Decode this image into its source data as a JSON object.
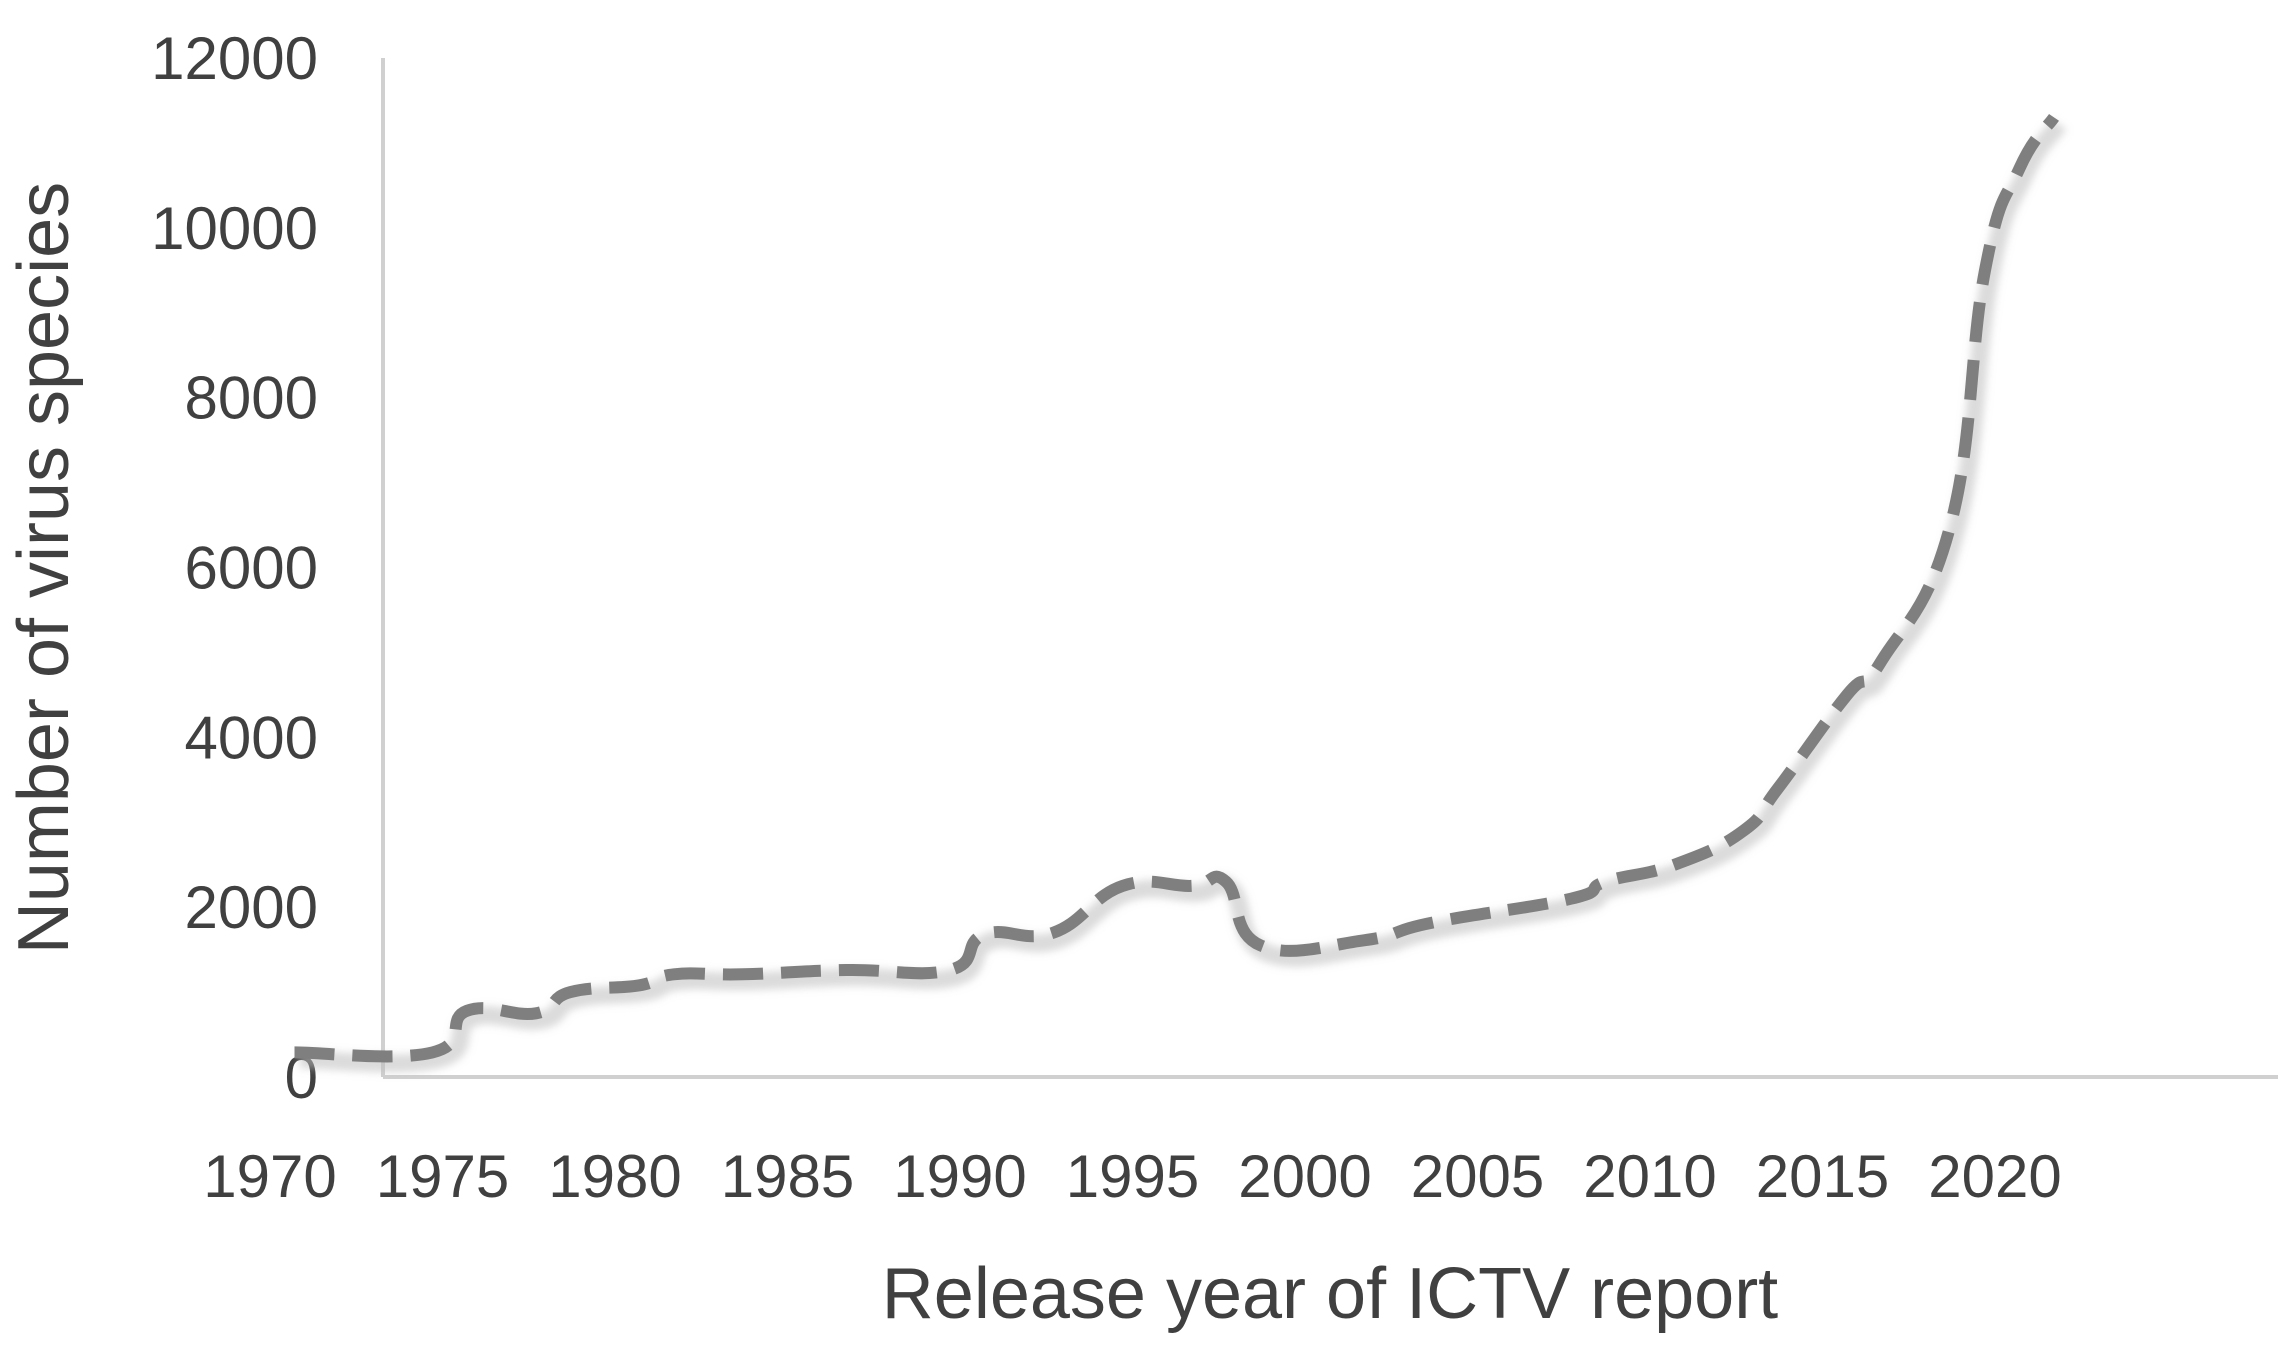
{
  "chart_data": {
    "type": "line",
    "title": "",
    "xlabel": "Release year of ICTV report",
    "ylabel": "Number of virus species",
    "xlim": [
      1970,
      2023
    ],
    "ylim": [
      0,
      12000
    ],
    "x_ticks": [
      1970,
      1975,
      1980,
      1985,
      1990,
      1995,
      2000,
      2005,
      2010,
      2015,
      2020
    ],
    "y_ticks": [
      0,
      2000,
      4000,
      6000,
      8000,
      10000,
      12000
    ],
    "grid": false,
    "legend": "none",
    "line_style": "dashed",
    "line_color": "#7f7f7f",
    "series": [
      {
        "x": [
          1971,
          1975,
          1976,
          1978,
          1979,
          1981,
          1982,
          1984,
          1987,
          1990,
          1991,
          1993,
          1995,
          1997,
          1998,
          1999,
          2002,
          2004,
          2008,
          2009,
          2011,
          2013,
          2014,
          2016,
          2017,
          2019,
          2020,
          2021,
          2022
        ],
        "y": [
          290,
          290,
          780,
          750,
          1000,
          1080,
          1210,
          1210,
          1260,
          1260,
          1680,
          1700,
          2250,
          2250,
          2300,
          1550,
          1610,
          1820,
          2100,
          2300,
          2500,
          2900,
          3400,
          4500,
          4900,
          6500,
          9500,
          10700,
          11300
        ]
      }
    ]
  }
}
